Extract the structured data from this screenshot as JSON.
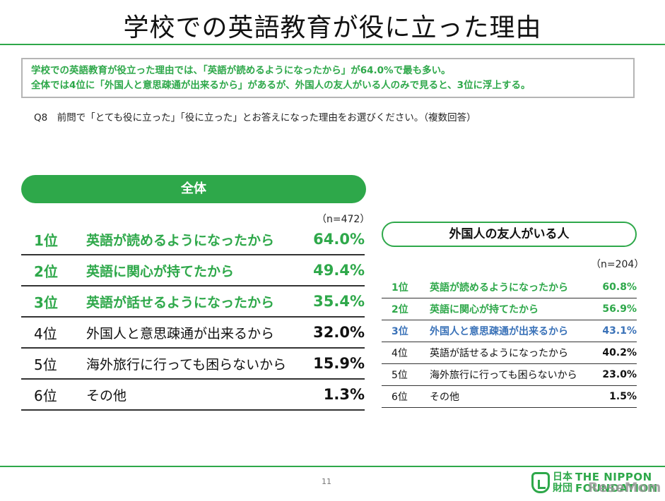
{
  "title": "学校での英語教育が役に立った理由",
  "summary": {
    "line1": "学校での英語教育が役立った理由では、「英語が読めるようになったから」が64.0%で最も多い。",
    "line2": "全体では4位に「外国人と意思疎通が出来るから」があるが、外国人の友人がいる人のみで見ると、3位に浮上する。"
  },
  "question": "Q8　前問で「とても役に立った」「役に立った」とお答えになった理由をお選びください。（複数回答）",
  "overall": {
    "header": "全体",
    "n": "（n=472）",
    "rows": [
      {
        "rank": "1位",
        "reason": "英語が読めるようになったから",
        "pct": "64.0%",
        "style": "green"
      },
      {
        "rank": "2位",
        "reason": "英語に関心が持てたから",
        "pct": "49.4%",
        "style": "green"
      },
      {
        "rank": "3位",
        "reason": "英語が話せるようになったから",
        "pct": "35.4%",
        "style": "green"
      },
      {
        "rank": "4位",
        "reason": "外国人と意思疎通が出来るから",
        "pct": "32.0%",
        "style": "black"
      },
      {
        "rank": "5位",
        "reason": "海外旅行に行っても困らないから",
        "pct": "15.9%",
        "style": "black"
      },
      {
        "rank": "6位",
        "reason": "その他",
        "pct": "1.3%",
        "style": "black"
      }
    ]
  },
  "friends": {
    "header": "外国人の友人がいる人",
    "n": "（n=204）",
    "rows": [
      {
        "rank": "1位",
        "reason": "英語が読めるようになったから",
        "pct": "60.8%",
        "style": "green"
      },
      {
        "rank": "2位",
        "reason": "英語に関心が持てたから",
        "pct": "56.9%",
        "style": "green"
      },
      {
        "rank": "3位",
        "reason": "外国人と意思疎通が出来るから",
        "pct": "43.1%",
        "style": "blue"
      },
      {
        "rank": "4位",
        "reason": "英語が話せるようになったから",
        "pct": "40.2%",
        "style": "black"
      },
      {
        "rank": "5位",
        "reason": "海外旅行に行っても困らないから",
        "pct": "23.0%",
        "style": "black"
      },
      {
        "rank": "6位",
        "reason": "その他",
        "pct": "1.5%",
        "style": "black"
      }
    ]
  },
  "footer": {
    "page_number": "11",
    "logo_jp_line1": "日本",
    "logo_jp_line2": "財団",
    "logo_en_line1": "THE NIPPON",
    "logo_en_line2": "FOUNDATION",
    "watermark": "ReseMom"
  },
  "colors": {
    "accent_green": "#2ea84a",
    "highlight_blue": "#3a72b8"
  }
}
